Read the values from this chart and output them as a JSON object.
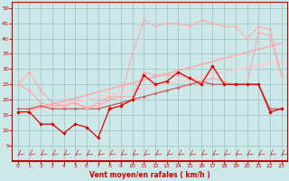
{
  "x": [
    0,
    1,
    2,
    3,
    4,
    5,
    6,
    7,
    8,
    9,
    10,
    11,
    12,
    13,
    14,
    15,
    16,
    17,
    18,
    19,
    20,
    21,
    22,
    23
  ],
  "trend1": [
    15.5,
    16.5,
    17.5,
    18.5,
    19.5,
    20.5,
    21.5,
    22.5,
    23.5,
    24.5,
    25.5,
    26.5,
    27.5,
    28.5,
    29.5,
    30.5,
    31.5,
    32.5,
    33.5,
    34.5,
    35.5,
    36.5,
    37.5,
    38.5
  ],
  "trend2": [
    15.5,
    16.2,
    17.0,
    17.8,
    18.5,
    19.3,
    20.0,
    20.8,
    21.5,
    22.3,
    23.0,
    23.8,
    24.5,
    25.3,
    26.0,
    26.8,
    27.5,
    28.3,
    29.0,
    29.8,
    30.5,
    31.3,
    32.0,
    32.8
  ],
  "line_pink_top": [
    25,
    29,
    23,
    19,
    18,
    19,
    17,
    19,
    21,
    21,
    35,
    46,
    44,
    45,
    45,
    44,
    46,
    45,
    44,
    44,
    40,
    44,
    43,
    28
  ],
  "line_pink_mid": [
    25,
    23,
    19,
    18,
    18,
    19,
    17.5,
    18,
    20,
    21,
    21,
    29,
    28,
    28,
    28,
    27,
    26,
    27,
    26,
    25,
    25,
    42,
    41,
    28
  ],
  "line_dark_red": [
    16,
    16,
    12,
    12,
    9,
    12,
    11,
    7.5,
    17,
    18,
    20,
    28,
    25,
    26,
    29,
    27,
    25,
    31,
    25,
    25,
    25,
    25,
    16,
    17
  ],
  "line_med_red": [
    17,
    17,
    18,
    17,
    17,
    17,
    17,
    17,
    18,
    19,
    20,
    21,
    22,
    23,
    24,
    25,
    26,
    25,
    25,
    25,
    25,
    25,
    17,
    17
  ],
  "background_color": "#cce8e8",
  "grid_color": "#aacccc",
  "colors": {
    "trend1": "#ffaaaa",
    "trend2": "#ffcccc",
    "line_pink_top": "#ffaaaa",
    "line_pink_mid": "#ffaaaa",
    "line_dark_red": "#dd0000",
    "line_med_red": "#cc6666"
  },
  "xlabel": "Vent moyen/en rafales ( km/h )",
  "xlim": [
    -0.5,
    23.5
  ],
  "ylim": [
    0,
    52
  ],
  "yticks": [
    5,
    10,
    15,
    20,
    25,
    30,
    35,
    40,
    45,
    50
  ],
  "xticks": [
    0,
    1,
    2,
    3,
    4,
    5,
    6,
    7,
    8,
    9,
    10,
    11,
    12,
    13,
    14,
    15,
    16,
    17,
    18,
    19,
    20,
    21,
    22,
    23
  ]
}
